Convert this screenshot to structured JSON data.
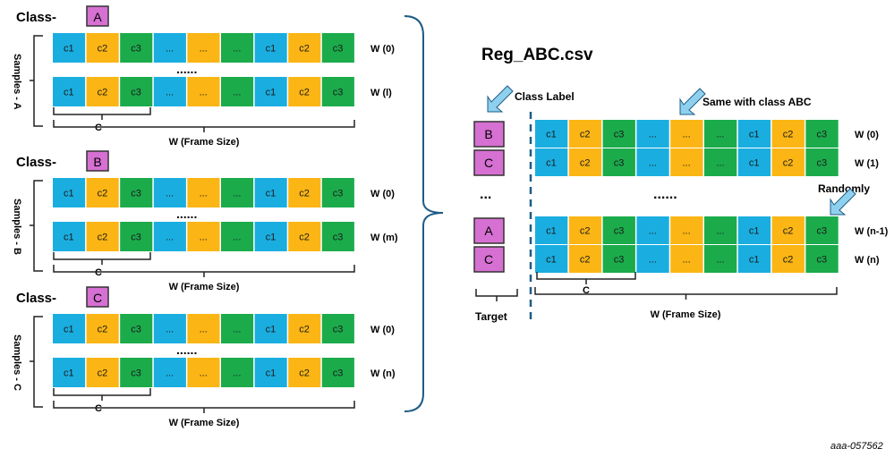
{
  "colors": {
    "c1": "#1aaee0",
    "c2": "#fbb514",
    "c3": "#1bab4b",
    "class_box": "#d670d2",
    "bracket": "#1e5d86",
    "arrow": "#8fd0ee"
  },
  "cell_pattern": [
    "c1",
    "c2",
    "c3",
    "...",
    "...",
    "...",
    "c1",
    "c2",
    "c3"
  ],
  "cell_colors": [
    "c1",
    "c2",
    "c3",
    "c1",
    "c2",
    "c3",
    "c1",
    "c2",
    "c3"
  ],
  "groups": [
    {
      "class_prefix": "Class-",
      "class": "A",
      "samples": "Samples - A",
      "rows": [
        "W (0)",
        "W (l)"
      ],
      "dots": "......",
      "c_label": "C",
      "w_label": "W (Frame Size)"
    },
    {
      "class_prefix": "Class-",
      "class": "B",
      "samples": "Samples - B",
      "rows": [
        "W (0)",
        "W (m)"
      ],
      "dots": "......",
      "c_label": "C",
      "w_label": "W (Frame Size)"
    },
    {
      "class_prefix": "Class-",
      "class": "C",
      "samples": "Samples - C",
      "rows": [
        "W (0)",
        "W (n)"
      ],
      "dots": "......",
      "c_label": "C",
      "w_label": "W (Frame Size)"
    }
  ],
  "right": {
    "title": "Reg_ABC.csv",
    "class_label": "Class Label",
    "same_label": "Same with class ABC",
    "randomly": "Randomly",
    "target": "Target",
    "class_dots": "...",
    "dots": "......",
    "rows": [
      {
        "class": "B",
        "w": "W (0)"
      },
      {
        "class": "C",
        "w": "W (1)"
      },
      {
        "class": "A",
        "w": "W (n-1)"
      },
      {
        "class": "C",
        "w": "W (n)"
      }
    ],
    "c_label": "C",
    "w_label": "W (Frame Size)"
  },
  "figure_id": "aaa-057562"
}
